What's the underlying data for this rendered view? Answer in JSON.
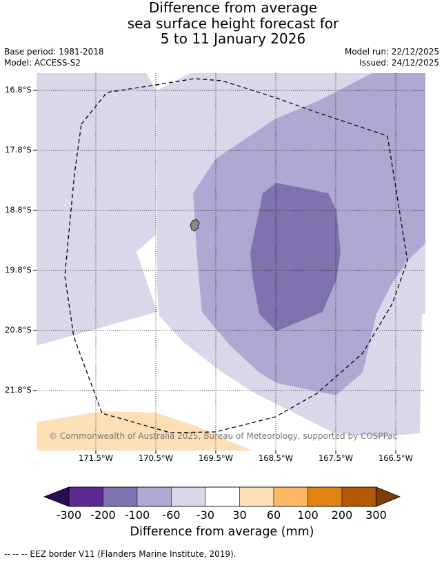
{
  "title": {
    "line1": "Difference from average",
    "line2": "sea surface height forecast for",
    "line3": "5 to 11 January 2026"
  },
  "meta": {
    "base_period": "Base period: 1981-2018",
    "model": "Model: ACCESS-S2",
    "model_run": "Model run: 22/12/2025",
    "issued": "Issued: 24/12/2025"
  },
  "map": {
    "lat_labels": [
      "16.8°S",
      "17.8°S",
      "18.8°S",
      "19.8°S",
      "20.8°S",
      "21.8°S"
    ],
    "lon_labels": [
      "171.5°W",
      "170.5°W",
      "169.5°W",
      "168.5°W",
      "167.5°W",
      "166.5°W"
    ],
    "copyright": "© Commonwealth of Australia 2025, Bureau of Meteorology, supported by COSPPac",
    "colors": {
      "minus_200_to_100": "#7f72ae",
      "minus_100_to_60": "#aea8d2",
      "minus_60_to_30": "#d8d8ea",
      "minus_30_to_30": "#ffffff",
      "plus_30_to_60": "#fee0b6",
      "land": "#888888",
      "eez": "#000000"
    }
  },
  "colorbar": {
    "ticks": [
      "-300",
      "-200",
      "-100",
      "-60",
      "-30",
      "30",
      "60",
      "100",
      "200",
      "300"
    ],
    "colors": [
      "#2d0a56",
      "#5d2a91",
      "#7f72ae",
      "#aea8d2",
      "#d8d8ea",
      "#ffffff",
      "#fee0b6",
      "#fdb863",
      "#e08214",
      "#b35806",
      "#7f3b08"
    ],
    "label": "Difference from average (mm)"
  },
  "footnote": "--  --  -- EEZ border V11 (Flanders Marine Institute, 2019)."
}
